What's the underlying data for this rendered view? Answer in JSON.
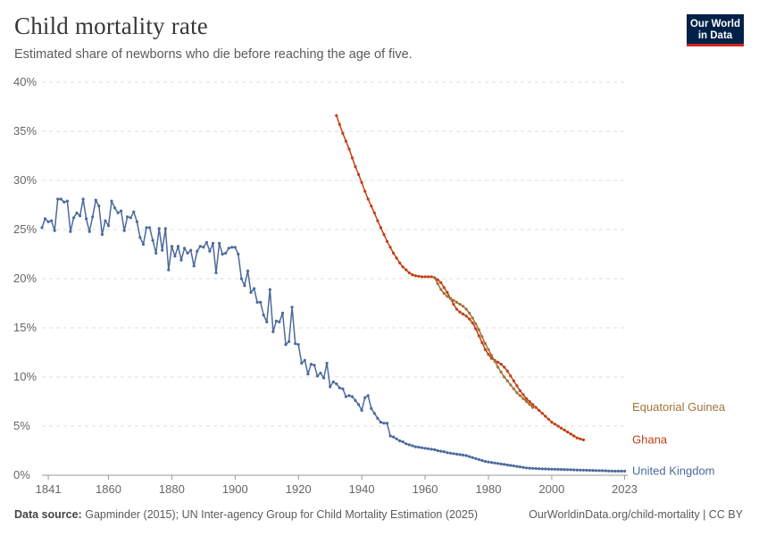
{
  "header": {
    "title": "Child mortality rate",
    "subtitle": "Estimated share of newborns who die before reaching the age of five."
  },
  "logo": {
    "line1": "Our World",
    "line2": "in Data"
  },
  "footer": {
    "source_label": "Data source:",
    "source_text": "Gapminder (2015); UN Inter-agency Group for Child Mortality Estimation (2025)",
    "url": "OurWorldinData.org/child-mortality | CC BY"
  },
  "colors": {
    "United Kingdom": "#4c6a9c",
    "Ghana": "#c33e12",
    "Equatorial Guinea": "#a2733a",
    "grid": "#dddddd",
    "axis_text": "#666666"
  },
  "chart_data": {
    "type": "line",
    "xlim": [
      1839,
      2024
    ],
    "ylim": [
      0,
      40
    ],
    "x_ticks": [
      "1841",
      "1860",
      "1880",
      "1900",
      "1920",
      "1940",
      "1960",
      "1980",
      "2000",
      "2023"
    ],
    "y_ticks": [
      "0%",
      "5%",
      "10%",
      "15%",
      "20%",
      "25%",
      "30%",
      "35%",
      "40%"
    ],
    "grid": "horizontal dashed",
    "legend": "labels at line ends",
    "series": [
      {
        "name": "United Kingdom",
        "values": [
          [
            1839,
            25.2
          ],
          [
            1840,
            26.1
          ],
          [
            1841,
            25.8
          ],
          [
            1842,
            25.9
          ],
          [
            1843,
            24.9
          ],
          [
            1844,
            28.1
          ],
          [
            1845,
            28.1
          ],
          [
            1846,
            27.8
          ],
          [
            1847,
            27.9
          ],
          [
            1848,
            24.8
          ],
          [
            1849,
            26.2
          ],
          [
            1850,
            26.7
          ],
          [
            1851,
            26.4
          ],
          [
            1852,
            28.1
          ],
          [
            1853,
            26.1
          ],
          [
            1854,
            24.8
          ],
          [
            1855,
            26.3
          ],
          [
            1856,
            28.0
          ],
          [
            1857,
            27.4
          ],
          [
            1858,
            24.5
          ],
          [
            1859,
            25.9
          ],
          [
            1860,
            25.4
          ],
          [
            1861,
            27.9
          ],
          [
            1862,
            27.2
          ],
          [
            1863,
            26.7
          ],
          [
            1864,
            26.9
          ],
          [
            1865,
            24.9
          ],
          [
            1866,
            26.3
          ],
          [
            1867,
            26.2
          ],
          [
            1868,
            26.8
          ],
          [
            1869,
            25.8
          ],
          [
            1870,
            24.2
          ],
          [
            1871,
            23.5
          ],
          [
            1872,
            25.2
          ],
          [
            1873,
            25.2
          ],
          [
            1874,
            23.9
          ],
          [
            1875,
            22.6
          ],
          [
            1876,
            25.1
          ],
          [
            1877,
            22.9
          ],
          [
            1878,
            25.1
          ],
          [
            1879,
            20.9
          ],
          [
            1880,
            23.3
          ],
          [
            1881,
            22.3
          ],
          [
            1882,
            23.3
          ],
          [
            1883,
            21.9
          ],
          [
            1884,
            23.1
          ],
          [
            1885,
            22.6
          ],
          [
            1886,
            22.9
          ],
          [
            1887,
            21.3
          ],
          [
            1888,
            22.8
          ],
          [
            1889,
            23.3
          ],
          [
            1890,
            23.2
          ],
          [
            1891,
            23.7
          ],
          [
            1892,
            22.8
          ],
          [
            1893,
            23.6
          ],
          [
            1894,
            20.6
          ],
          [
            1895,
            23.6
          ],
          [
            1896,
            22.5
          ],
          [
            1897,
            22.6
          ],
          [
            1898,
            23.1
          ],
          [
            1899,
            23.2
          ],
          [
            1900,
            23.2
          ],
          [
            1901,
            22.5
          ],
          [
            1902,
            20.0
          ],
          [
            1903,
            19.3
          ],
          [
            1904,
            20.8
          ],
          [
            1905,
            18.6
          ],
          [
            1906,
            19.0
          ],
          [
            1907,
            17.6
          ],
          [
            1908,
            17.6
          ],
          [
            1909,
            16.3
          ],
          [
            1910,
            15.6
          ],
          [
            1911,
            18.9
          ],
          [
            1912,
            14.6
          ],
          [
            1913,
            15.7
          ],
          [
            1914,
            15.6
          ],
          [
            1915,
            16.5
          ],
          [
            1916,
            13.3
          ],
          [
            1917,
            13.6
          ],
          [
            1918,
            17.1
          ],
          [
            1919,
            13.4
          ],
          [
            1920,
            13.3
          ],
          [
            1921,
            11.4
          ],
          [
            1922,
            11.7
          ],
          [
            1923,
            10.3
          ],
          [
            1924,
            11.3
          ],
          [
            1925,
            11.2
          ],
          [
            1926,
            10.1
          ],
          [
            1927,
            10.4
          ],
          [
            1928,
            9.9
          ],
          [
            1929,
            11.4
          ],
          [
            1930,
            9.0
          ],
          [
            1931,
            9.5
          ],
          [
            1932,
            9.3
          ],
          [
            1933,
            8.9
          ],
          [
            1934,
            8.8
          ],
          [
            1935,
            8.0
          ],
          [
            1936,
            8.1
          ],
          [
            1937,
            8.0
          ],
          [
            1938,
            7.6
          ],
          [
            1939,
            7.2
          ],
          [
            1940,
            6.6
          ],
          [
            1941,
            7.9
          ],
          [
            1942,
            8.1
          ],
          [
            1943,
            6.8
          ],
          [
            1944,
            6.3
          ],
          [
            1945,
            5.8
          ],
          [
            1946,
            5.4
          ],
          [
            1947,
            5.3
          ],
          [
            1948,
            5.3
          ],
          [
            1949,
            4.0
          ],
          [
            1950,
            3.9
          ],
          [
            1951,
            3.7
          ],
          [
            1952,
            3.5
          ],
          [
            1953,
            3.4
          ],
          [
            1954,
            3.2
          ],
          [
            1955,
            3.1
          ],
          [
            1956,
            3.0
          ],
          [
            1957,
            2.9
          ],
          [
            1958,
            2.85
          ],
          [
            1959,
            2.8
          ],
          [
            1960,
            2.75
          ],
          [
            1961,
            2.7
          ],
          [
            1962,
            2.65
          ],
          [
            1963,
            2.6
          ],
          [
            1964,
            2.5
          ],
          [
            1965,
            2.45
          ],
          [
            1966,
            2.4
          ],
          [
            1967,
            2.3
          ],
          [
            1968,
            2.25
          ],
          [
            1969,
            2.2
          ],
          [
            1970,
            2.15
          ],
          [
            1971,
            2.1
          ],
          [
            1972,
            2.05
          ],
          [
            1973,
            2.0
          ],
          [
            1974,
            1.9
          ],
          [
            1975,
            1.8
          ],
          [
            1976,
            1.7
          ],
          [
            1977,
            1.6
          ],
          [
            1978,
            1.5
          ],
          [
            1979,
            1.4
          ],
          [
            1980,
            1.35
          ],
          [
            1981,
            1.3
          ],
          [
            1982,
            1.25
          ],
          [
            1983,
            1.2
          ],
          [
            1984,
            1.15
          ],
          [
            1985,
            1.1
          ],
          [
            1986,
            1.05
          ],
          [
            1987,
            1.0
          ],
          [
            1988,
            0.95
          ],
          [
            1989,
            0.9
          ],
          [
            1990,
            0.85
          ],
          [
            1991,
            0.8
          ],
          [
            1992,
            0.75
          ],
          [
            1993,
            0.72
          ],
          [
            1994,
            0.7
          ],
          [
            1995,
            0.68
          ],
          [
            1996,
            0.66
          ],
          [
            1997,
            0.65
          ],
          [
            1998,
            0.64
          ],
          [
            1999,
            0.63
          ],
          [
            2000,
            0.62
          ],
          [
            2001,
            0.61
          ],
          [
            2002,
            0.6
          ],
          [
            2003,
            0.59
          ],
          [
            2004,
            0.58
          ],
          [
            2005,
            0.57
          ],
          [
            2006,
            0.56
          ],
          [
            2007,
            0.55
          ],
          [
            2008,
            0.54
          ],
          [
            2009,
            0.53
          ],
          [
            2010,
            0.52
          ],
          [
            2011,
            0.51
          ],
          [
            2012,
            0.5
          ],
          [
            2013,
            0.49
          ],
          [
            2014,
            0.48
          ],
          [
            2015,
            0.47
          ],
          [
            2016,
            0.46
          ],
          [
            2017,
            0.45
          ],
          [
            2018,
            0.44
          ],
          [
            2019,
            0.43
          ],
          [
            2020,
            0.42
          ],
          [
            2021,
            0.42
          ],
          [
            2022,
            0.42
          ],
          [
            2023,
            0.42
          ]
        ]
      },
      {
        "name": "Ghana",
        "values": [
          [
            1932,
            36.6
          ],
          [
            1933,
            35.7
          ],
          [
            1934,
            34.8
          ],
          [
            1935,
            34.0
          ],
          [
            1936,
            33.2
          ],
          [
            1937,
            32.3
          ],
          [
            1938,
            31.4
          ],
          [
            1939,
            30.6
          ],
          [
            1940,
            29.8
          ],
          [
            1941,
            28.9
          ],
          [
            1942,
            28.1
          ],
          [
            1943,
            27.4
          ],
          [
            1944,
            26.7
          ],
          [
            1945,
            25.9
          ],
          [
            1946,
            25.2
          ],
          [
            1947,
            24.5
          ],
          [
            1948,
            23.8
          ],
          [
            1949,
            23.2
          ],
          [
            1950,
            22.6
          ],
          [
            1951,
            22.1
          ],
          [
            1952,
            21.6
          ],
          [
            1953,
            21.2
          ],
          [
            1954,
            20.9
          ],
          [
            1955,
            20.6
          ],
          [
            1956,
            20.4
          ],
          [
            1957,
            20.3
          ],
          [
            1958,
            20.25
          ],
          [
            1959,
            20.2
          ],
          [
            1960,
            20.2
          ],
          [
            1961,
            20.2
          ],
          [
            1962,
            20.2
          ],
          [
            1963,
            20.1
          ],
          [
            1964,
            19.9
          ],
          [
            1965,
            19.6
          ],
          [
            1966,
            19.1
          ],
          [
            1967,
            18.6
          ],
          [
            1968,
            18.0
          ],
          [
            1969,
            17.4
          ],
          [
            1970,
            16.9
          ],
          [
            1971,
            16.6
          ],
          [
            1972,
            16.4
          ],
          [
            1973,
            16.2
          ],
          [
            1974,
            15.9
          ],
          [
            1975,
            15.5
          ],
          [
            1976,
            14.9
          ],
          [
            1977,
            14.2
          ],
          [
            1978,
            13.5
          ],
          [
            1979,
            12.8
          ],
          [
            1980,
            12.3
          ],
          [
            1981,
            11.9
          ],
          [
            1982,
            11.7
          ],
          [
            1983,
            11.5
          ],
          [
            1984,
            11.3
          ],
          [
            1985,
            11.0
          ],
          [
            1986,
            10.6
          ],
          [
            1987,
            10.1
          ],
          [
            1988,
            9.6
          ],
          [
            1989,
            9.1
          ],
          [
            1990,
            8.6
          ],
          [
            1991,
            8.2
          ],
          [
            1992,
            7.8
          ],
          [
            1993,
            7.5
          ],
          [
            1994,
            7.2
          ],
          [
            1995,
            6.9
          ],
          [
            1996,
            6.6
          ],
          [
            1997,
            6.3
          ],
          [
            1998,
            6.0
          ],
          [
            1999,
            5.7
          ],
          [
            2000,
            5.4
          ],
          [
            2001,
            5.2
          ],
          [
            2002,
            5.0
          ],
          [
            2003,
            4.8
          ],
          [
            2004,
            4.6
          ],
          [
            2005,
            4.4
          ],
          [
            2006,
            4.2
          ],
          [
            2007,
            4.0
          ],
          [
            2008,
            3.8
          ],
          [
            2009,
            3.7
          ],
          [
            2010,
            3.6
          ]
        ]
      },
      {
        "name": "Equatorial Guinea",
        "values": [
          [
            1963,
            20.1
          ],
          [
            1964,
            19.5
          ],
          [
            1965,
            18.9
          ],
          [
            1966,
            18.5
          ],
          [
            1967,
            18.2
          ],
          [
            1968,
            18.0
          ],
          [
            1969,
            17.8
          ],
          [
            1970,
            17.6
          ],
          [
            1971,
            17.4
          ],
          [
            1972,
            17.2
          ],
          [
            1973,
            16.9
          ],
          [
            1974,
            16.5
          ],
          [
            1975,
            16.0
          ],
          [
            1976,
            15.4
          ],
          [
            1977,
            14.8
          ],
          [
            1978,
            14.1
          ],
          [
            1979,
            13.4
          ],
          [
            1980,
            12.8
          ],
          [
            1981,
            12.2
          ],
          [
            1982,
            11.6
          ],
          [
            1983,
            11.0
          ],
          [
            1984,
            10.5
          ],
          [
            1985,
            10.0
          ],
          [
            1986,
            9.6
          ],
          [
            1987,
            9.2
          ],
          [
            1988,
            8.8
          ],
          [
            1989,
            8.4
          ],
          [
            1990,
            8.1
          ],
          [
            1991,
            7.8
          ],
          [
            1992,
            7.5
          ],
          [
            1993,
            7.2
          ],
          [
            1994,
            6.9
          ]
        ]
      }
    ]
  }
}
